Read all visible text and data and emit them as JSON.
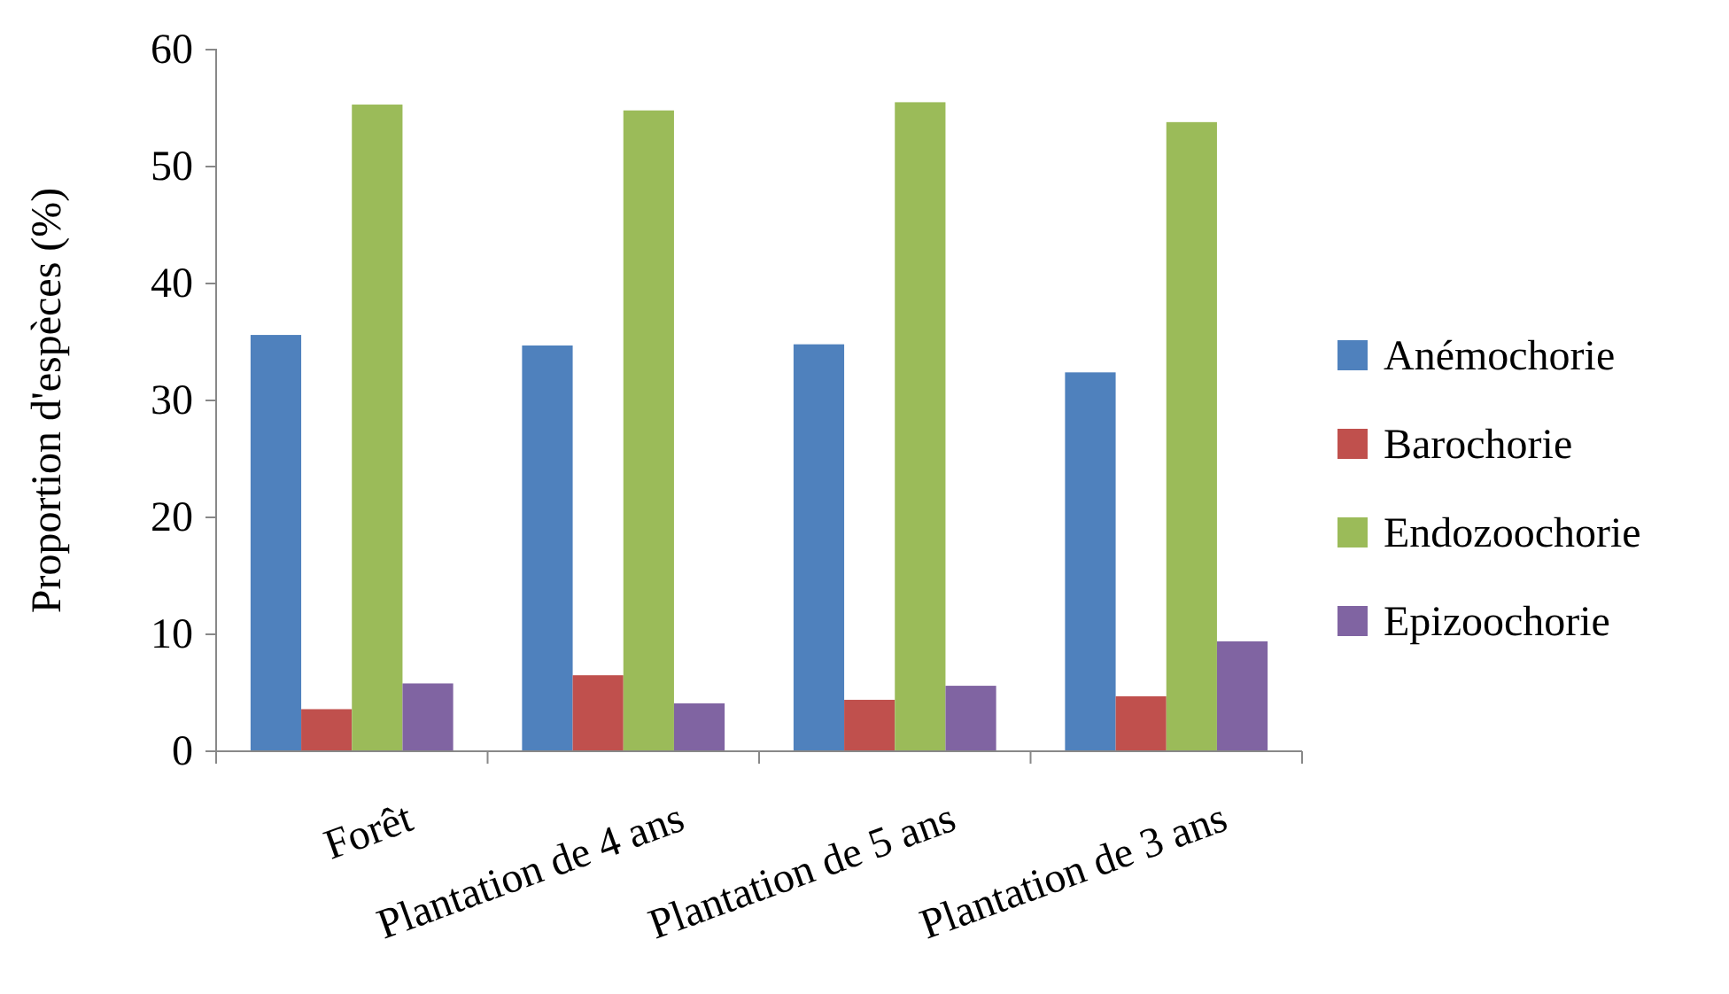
{
  "chart_data": {
    "type": "bar",
    "ylabel": "Proportion d'espèces (%)",
    "categories": [
      "Forêt",
      "Plantation de 4 ans",
      "Plantation de 5 ans",
      "Plantation de 3 ans"
    ],
    "series": [
      {
        "name": "Anémochorie",
        "color": "#4f81bd",
        "values": [
          35.6,
          34.7,
          34.8,
          32.4
        ]
      },
      {
        "name": "Barochorie",
        "color": "#c0504d",
        "values": [
          3.6,
          6.5,
          4.4,
          4.7
        ]
      },
      {
        "name": "Endozoochorie",
        "color": "#9bbb59",
        "values": [
          55.3,
          54.8,
          55.5,
          53.8
        ]
      },
      {
        "name": "Epizoochorie",
        "color": "#8064a2",
        "values": [
          5.8,
          4.1,
          5.6,
          9.4
        ]
      }
    ],
    "ylim": [
      0,
      60
    ],
    "yticks": [
      0,
      10,
      20,
      30,
      40,
      50,
      60
    ],
    "grid": false,
    "legend": "right"
  }
}
